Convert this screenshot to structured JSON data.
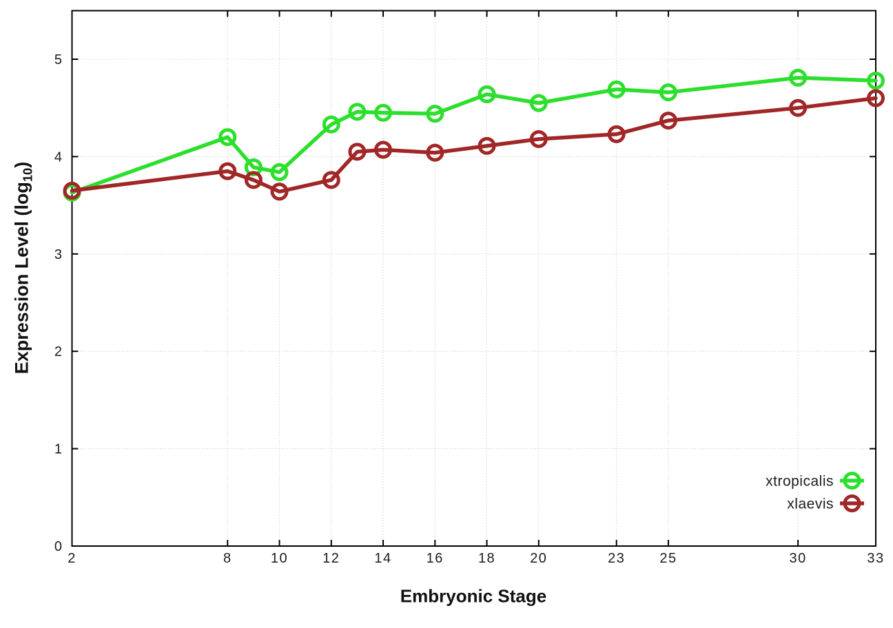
{
  "figure": {
    "background": "#ffffff",
    "xlabel": "Embryonic Stage",
    "ylabel_prefix": "Expression Level (log",
    "ylabel_sub": "10",
    "ylabel_suffix": ")"
  },
  "chart_data": {
    "type": "line",
    "title": "",
    "xlabel": "Embryonic Stage",
    "ylabel": "Expression Level (log10)",
    "grid": true,
    "grid_style": "dotted",
    "legend_position": "inside-bottom-right",
    "xlim": [
      2,
      33
    ],
    "ylim": [
      0,
      5.5
    ],
    "x": [
      2,
      8,
      9,
      10,
      12,
      13,
      14,
      16,
      18,
      20,
      23,
      25,
      30,
      33
    ],
    "xtick_labels": [
      "2",
      "8",
      "10",
      "12",
      "14",
      "16",
      "18",
      "20",
      "23",
      "25",
      "30",
      "33"
    ],
    "ytick_labels": [
      "0",
      "1",
      "2",
      "3",
      "4",
      "5"
    ],
    "ytick_values": [
      0,
      1,
      2,
      3,
      4,
      5
    ],
    "series": [
      {
        "name": "xtropicalis",
        "color": "#2cdf2c",
        "marker": "open-circle",
        "values": [
          3.63,
          4.2,
          3.89,
          3.84,
          4.33,
          4.46,
          4.45,
          4.44,
          4.64,
          4.55,
          4.69,
          4.66,
          4.81,
          4.78
        ]
      },
      {
        "name": "xlaevis",
        "color": "#a12727",
        "marker": "open-circle",
        "values": [
          3.65,
          3.85,
          3.76,
          3.64,
          3.76,
          4.05,
          4.07,
          4.04,
          4.11,
          4.18,
          4.23,
          4.37,
          4.5,
          4.6
        ]
      }
    ],
    "colors": {
      "axis": "#000000",
      "grid": "#b9b9b9",
      "text": "#1c1c1c"
    }
  }
}
